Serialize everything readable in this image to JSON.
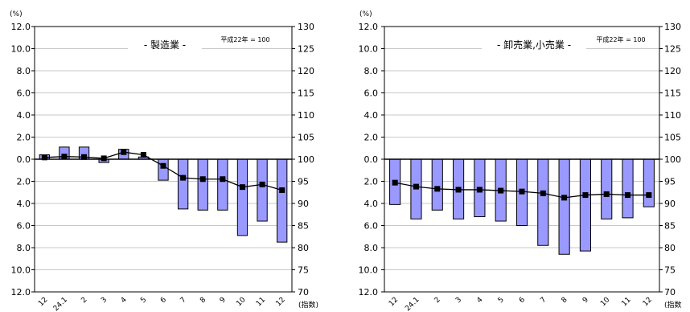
{
  "chart_data": [
    {
      "type": "bar",
      "title": "- 製造業 -",
      "note": "平成22年 = 100",
      "left_axis_unit": "(%)",
      "right_axis_unit": "(指数)",
      "categories": [
        "12",
        "24.1",
        "2",
        "3",
        "4",
        "5",
        "6",
        "7",
        "8",
        "9",
        "10",
        "11",
        "12"
      ],
      "left_ticks": [
        "12.0",
        "10.0",
        "8.0",
        "6.0",
        "4.0",
        "2.0",
        "0.0",
        "2.0",
        "4.0",
        "6.0",
        "8.0",
        "10.0",
        "12.0"
      ],
      "right_ticks": [
        "130",
        "125",
        "120",
        "115",
        "110",
        "105",
        "100",
        "95",
        "90",
        "85",
        "80",
        "75",
        "70"
      ],
      "ylim_left": [
        -12,
        12
      ],
      "ylim_right": [
        70,
        130
      ],
      "grid": true,
      "series": [
        {
          "kind": "bar",
          "axis": "left",
          "values": [
            0.4,
            1.1,
            1.1,
            -0.3,
            0.9,
            0.2,
            -1.9,
            -4.5,
            -4.6,
            -4.6,
            -6.9,
            -5.6,
            -7.5
          ]
        },
        {
          "kind": "line",
          "axis": "right",
          "values": [
            100.4,
            100.6,
            100.5,
            100.2,
            101.6,
            101.0,
            98.5,
            95.8,
            95.5,
            95.5,
            93.7,
            94.3,
            93.0
          ]
        }
      ]
    },
    {
      "type": "bar",
      "title": "- 卸売業,小売業 -",
      "note": "平成22年 = 100",
      "left_axis_unit": "(%)",
      "right_axis_unit": "(指数",
      "categories": [
        "12",
        "24.1",
        "2",
        "3",
        "4",
        "5",
        "6",
        "7",
        "8",
        "9",
        "10",
        "11",
        "12"
      ],
      "left_ticks": [
        "12.0",
        "10.0",
        "8.0",
        "6.0",
        "4.0",
        "2.0",
        "0.0",
        "2.0",
        "4.0",
        "6.0",
        "8.0",
        "10.0",
        "12.0"
      ],
      "right_ticks": [
        "130",
        "125",
        "120",
        "115",
        "110",
        "105",
        "100",
        "95",
        "90",
        "85",
        "80",
        "75",
        "70"
      ],
      "ylim_left": [
        -12,
        12
      ],
      "ylim_right": [
        70,
        130
      ],
      "grid": true,
      "series": [
        {
          "kind": "bar",
          "axis": "left",
          "values": [
            -4.1,
            -5.4,
            -4.6,
            -5.4,
            -5.2,
            -5.6,
            -6.0,
            -7.8,
            -8.6,
            -8.3,
            -5.4,
            -5.3,
            -4.3
          ]
        },
        {
          "kind": "line",
          "axis": "right",
          "values": [
            94.7,
            93.8,
            93.3,
            93.1,
            93.1,
            92.9,
            92.7,
            92.3,
            91.3,
            91.9,
            92.1,
            91.9,
            91.9
          ]
        }
      ]
    }
  ]
}
